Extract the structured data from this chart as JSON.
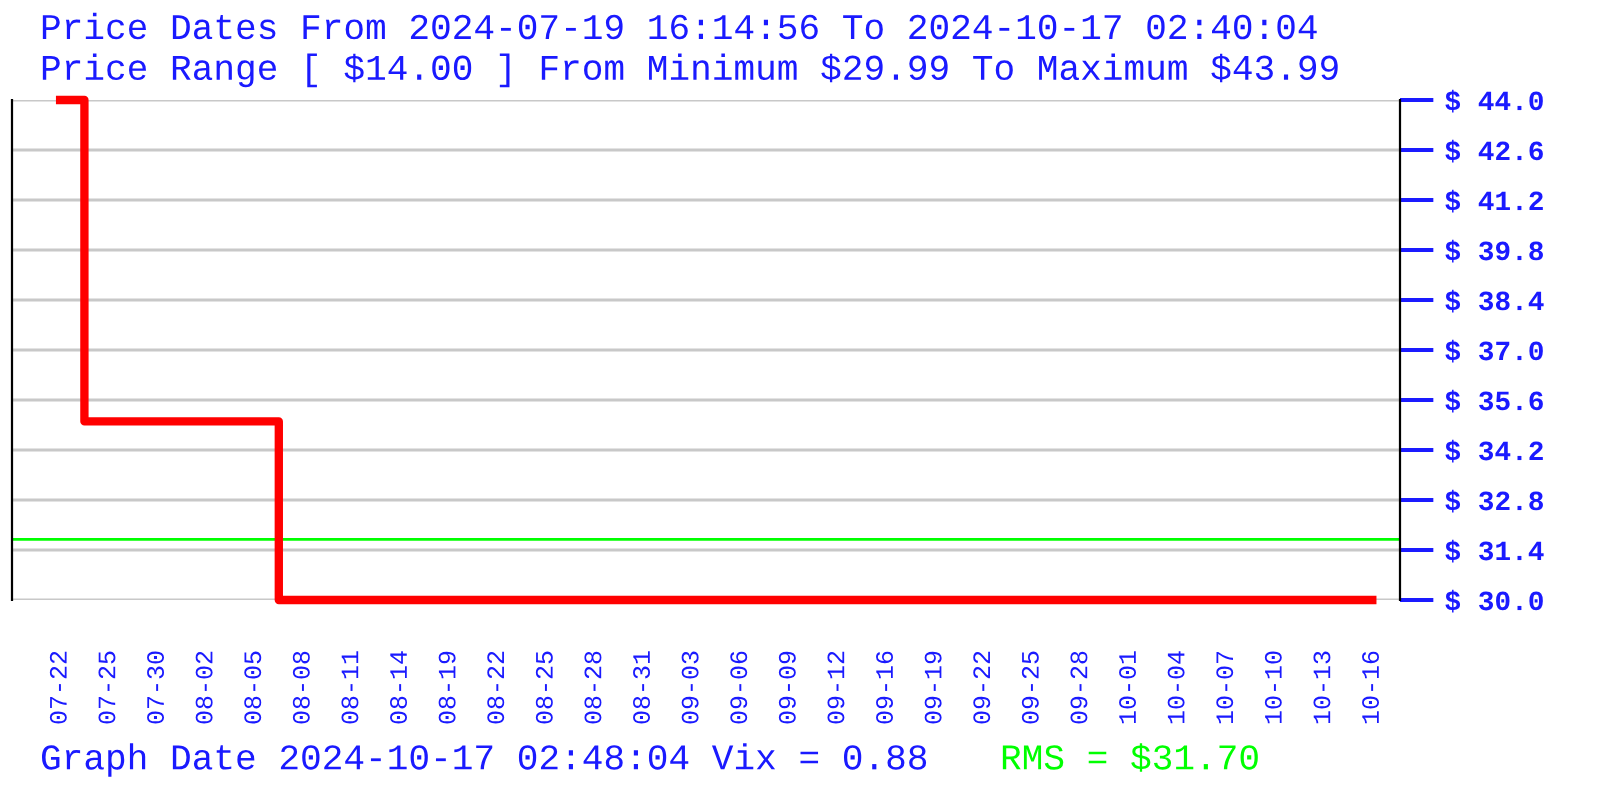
{
  "chart_data": {
    "type": "step",
    "title": "Price Dates From 2024-07-19 16:14:56 To 2024-10-17 02:40:04",
    "subtitle": "Price Range [ $14.00 ] From Minimum $29.99 To Maximum $43.99",
    "categories": [
      "07-22",
      "07-25",
      "07-30",
      "08-02",
      "08-05",
      "08-08",
      "08-11",
      "08-14",
      "08-19",
      "08-22",
      "08-25",
      "08-28",
      "08-31",
      "09-03",
      "09-06",
      "09-09",
      "09-12",
      "09-16",
      "09-19",
      "09-22",
      "09-25",
      "09-28",
      "10-01",
      "10-04",
      "10-07",
      "10-10",
      "10-13",
      "10-16"
    ],
    "series": [
      {
        "color": "#ff0000",
        "values": [
          44.0,
          35.0,
          35.0,
          35.0,
          35.0,
          30.0,
          30.0,
          30.0,
          30.0,
          30.0,
          30.0,
          30.0,
          30.0,
          30.0,
          30.0,
          30.0,
          30.0,
          30.0,
          30.0,
          30.0,
          30.0,
          30.0,
          30.0,
          30.0,
          30.0,
          30.0,
          30.0,
          30.0
        ]
      }
    ],
    "ylim": [
      30,
      44
    ],
    "yticks": [
      {
        "value": 30,
        "label": "$ 30.0"
      },
      {
        "value": 31.4,
        "label": "$ 31.4"
      },
      {
        "value": 32.8,
        "label": "$ 32.8"
      },
      {
        "value": 34.2,
        "label": "$ 34.2"
      },
      {
        "value": 35.6,
        "label": "$ 35.6"
      },
      {
        "value": 37.0,
        "label": "$ 37.0"
      },
      {
        "value": 38.4,
        "label": "$ 38.4"
      },
      {
        "value": 39.8,
        "label": "$ 39.8"
      },
      {
        "value": 41.2,
        "label": "$ 41.2"
      },
      {
        "value": 42.6,
        "label": "$ 42.6"
      },
      {
        "value": 44,
        "label": "$ 44.0"
      }
    ],
    "ref_lines": [
      {
        "axis": "y",
        "value": 31.7,
        "label": "RMS = $31.70",
        "color": "#00ff00"
      }
    ],
    "annotations": [
      "Graph Date 2024-10-17 02:48:04 Vix = 0.88"
    ],
    "grid": "y",
    "legend": false
  }
}
